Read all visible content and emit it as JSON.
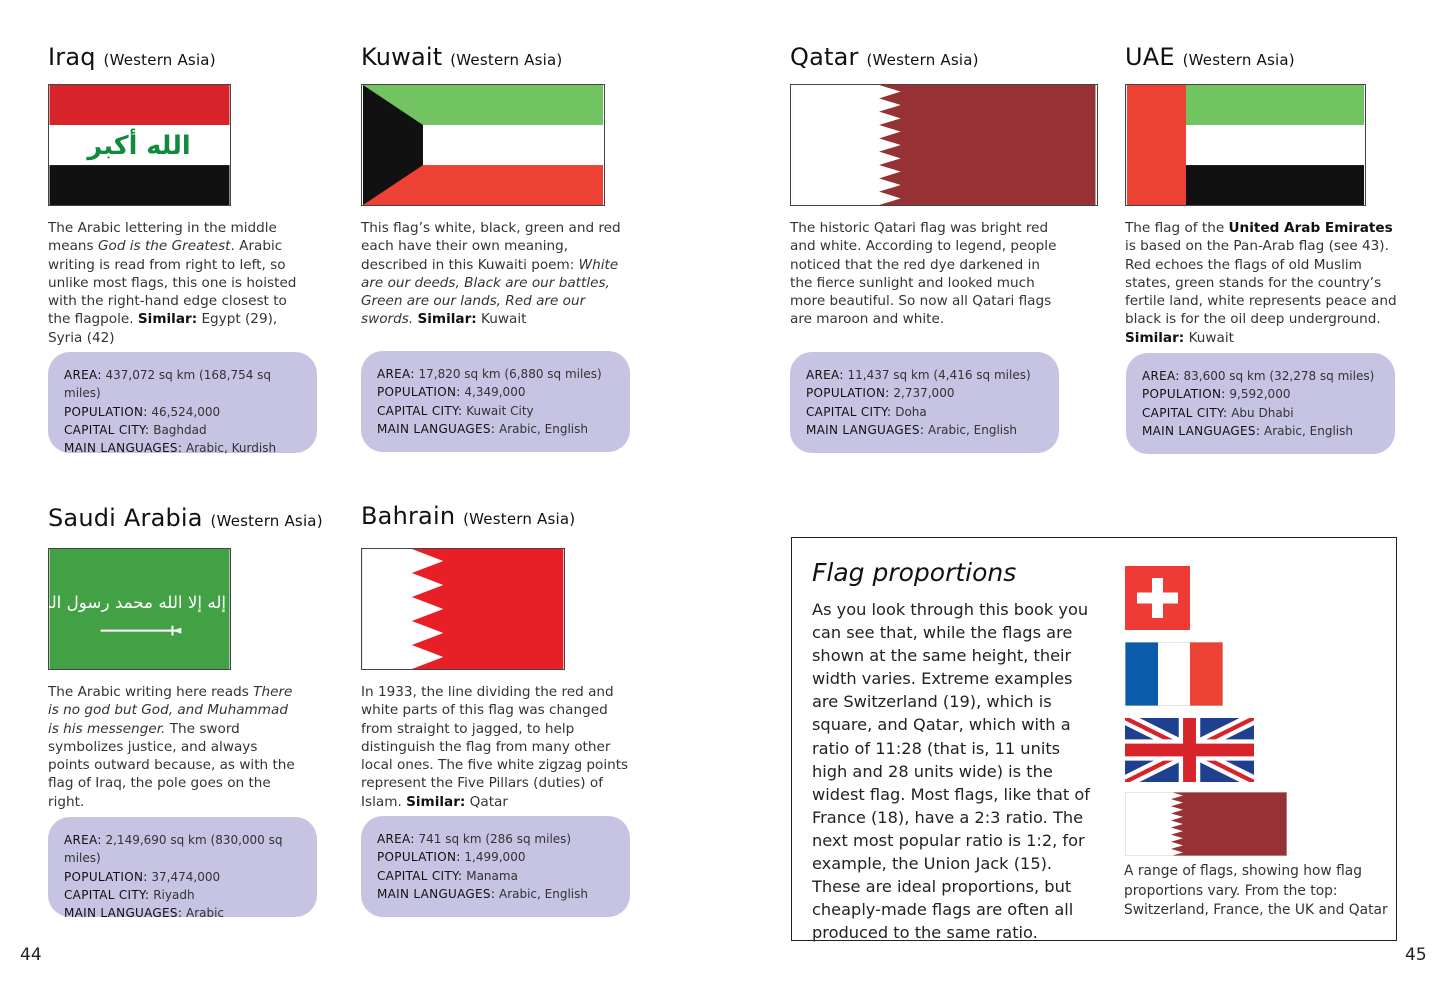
{
  "pages": {
    "left_number": "44",
    "right_number": "45"
  },
  "countries": [
    {
      "name": "Iraq",
      "region": "(Western Asia)",
      "description": [
        {
          "t": "The Arabic lettering in the middle means "
        },
        {
          "t": "God is the Greatest",
          "s": "i"
        },
        {
          "t": ". Arabic writing is read from right to left, so unlike most flags, this one is hoisted with the right-hand edge closest to the flagpole. "
        },
        {
          "t": "Similar:",
          "s": "b"
        },
        {
          "t": " Egypt (29), Syria (42)"
        }
      ],
      "facts": [
        {
          "label": "AREA:",
          "value": " 437,072 sq km (168,754 sq miles)"
        },
        {
          "label": "POPULATION:",
          "value": " 46,524,000"
        },
        {
          "label": "CAPITAL CITY:",
          "value": " Baghdad"
        },
        {
          "label": "MAIN LANGUAGES:",
          "value": " Arabic, Kurdish"
        }
      ]
    },
    {
      "name": "Kuwait",
      "region": "(Western Asia)",
      "description": [
        {
          "t": "This flag’s white, black, green and red each have their own meaning, described in this Kuwaiti poem: "
        },
        {
          "t": "White are our deeds, Black are our battles, Green are our lands, Red are our swords.",
          "s": "i"
        },
        {
          "t": " "
        },
        {
          "t": "Similar:",
          "s": "b"
        },
        {
          "t": " Kuwait"
        }
      ],
      "facts": [
        {
          "label": "AREA:",
          "value": " 17,820 sq km (6,880 sq miles)"
        },
        {
          "label": "POPULATION:",
          "value": " 4,349,000"
        },
        {
          "label": "CAPITAL CITY:",
          "value": " Kuwait City"
        },
        {
          "label": "MAIN LANGUAGES:",
          "value": " Arabic, English"
        }
      ]
    },
    {
      "name": "Qatar",
      "region": "(Western Asia)",
      "description": [
        {
          "t": "The historic Qatari flag was bright red and white. According to legend, people noticed that the red dye darkened in the fierce sunlight and looked much more beautiful. So now all Qatari flags are maroon and white."
        }
      ],
      "facts": [
        {
          "label": "AREA:",
          "value": " 11,437 sq km (4,416 sq miles)"
        },
        {
          "label": "POPULATION:",
          "value": " 2,737,000"
        },
        {
          "label": "CAPITAL CITY:",
          "value": " Doha"
        },
        {
          "label": "MAIN LANGUAGES:",
          "value": " Arabic, English"
        }
      ]
    },
    {
      "name": "UAE",
      "region": "(Western Asia)",
      "description": [
        {
          "t": "The flag of the "
        },
        {
          "t": "United Arab Emirates",
          "s": "b"
        },
        {
          "t": " is based on the Pan-Arab flag (see 43). Red echoes the flags of old Muslim states, green stands for the country’s fertile land, white represents peace and black is for the oil deep underground. "
        },
        {
          "t": "Similar:",
          "s": "b"
        },
        {
          "t": " Kuwait"
        }
      ],
      "facts": [
        {
          "label": "AREA:",
          "value": " 83,600 sq km (32,278 sq miles)"
        },
        {
          "label": "POPULATION:",
          "value": " 9,592,000"
        },
        {
          "label": "CAPITAL CITY:",
          "value": " Abu Dhabi"
        },
        {
          "label": "MAIN LANGUAGES:",
          "value": " Arabic, English"
        }
      ]
    },
    {
      "name": "Saudi Arabia",
      "region": "(Western Asia)",
      "description": [
        {
          "t": "The Arabic writing here reads "
        },
        {
          "t": "There is no god but God, and Muhammad is his messenger.",
          "s": "i"
        },
        {
          "t": " The sword symbolizes justice, and always points outward because, as with the flag of Iraq, the pole goes on the right."
        }
      ],
      "facts": [
        {
          "label": "AREA:",
          "value": " 2,149,690 sq km (830,000 sq miles)"
        },
        {
          "label": "POPULATION:",
          "value": " 37,474,000"
        },
        {
          "label": "CAPITAL CITY:",
          "value": " Riyadh"
        },
        {
          "label": "MAIN LANGUAGES:",
          "value": " Arabic"
        }
      ]
    },
    {
      "name": "Bahrain",
      "region": "(Western Asia)",
      "description": [
        {
          "t": "In 1933, the line dividing the red and white parts of this flag was changed from straight to jagged, to help distinguish the flag from many other local ones. The five white zigzag points represent the Five Pillars (duties) of Islam. "
        },
        {
          "t": "Similar:",
          "s": "b"
        },
        {
          "t": " Qatar"
        }
      ],
      "facts": [
        {
          "label": "AREA:",
          "value": " 741 sq km (286 sq miles)"
        },
        {
          "label": "POPULATION:",
          "value": " 1,499,000"
        },
        {
          "label": "CAPITAL CITY:",
          "value": " Manama"
        },
        {
          "label": "MAIN LANGUAGES:",
          "value": " Arabic, English"
        }
      ]
    }
  ],
  "flag_lettering": {
    "iraq": "الله أكبر",
    "saudi": "لا إله إلا الله محمد رسول الله"
  },
  "colors": {
    "iraq_red": "#d7242b",
    "arab_green": "#72c462",
    "kuwait_red": "#ee4135",
    "qatar_maroon": "#963135",
    "saudi_green": "#42a045",
    "bahrain_red": "#e81f27",
    "uk_blue": "#1f3f8f",
    "france_blue": "#0b5cab",
    "facts_bg": "#c6c3e3"
  },
  "proportions": {
    "title": "Flag proportions",
    "body": "As you look through this book you can see that, while the flags are shown at the same height, their width varies. Extreme examples are Switzerland (19), which is square, and Qatar, which with a ratio of 11:28 (that is, 11 units high and 28 units wide) is the widest flag. Most flags, like that of France (18), have a 2:3 ratio. The next most popular ratio is 1:2, for example, the Union Jack (15). These are ideal proportions, but cheaply-made flags are often all produced to the same ratio.",
    "caption": "A range of flags, showing how flag proportions vary. From the top: Switzerland, France, the UK and Qatar"
  }
}
